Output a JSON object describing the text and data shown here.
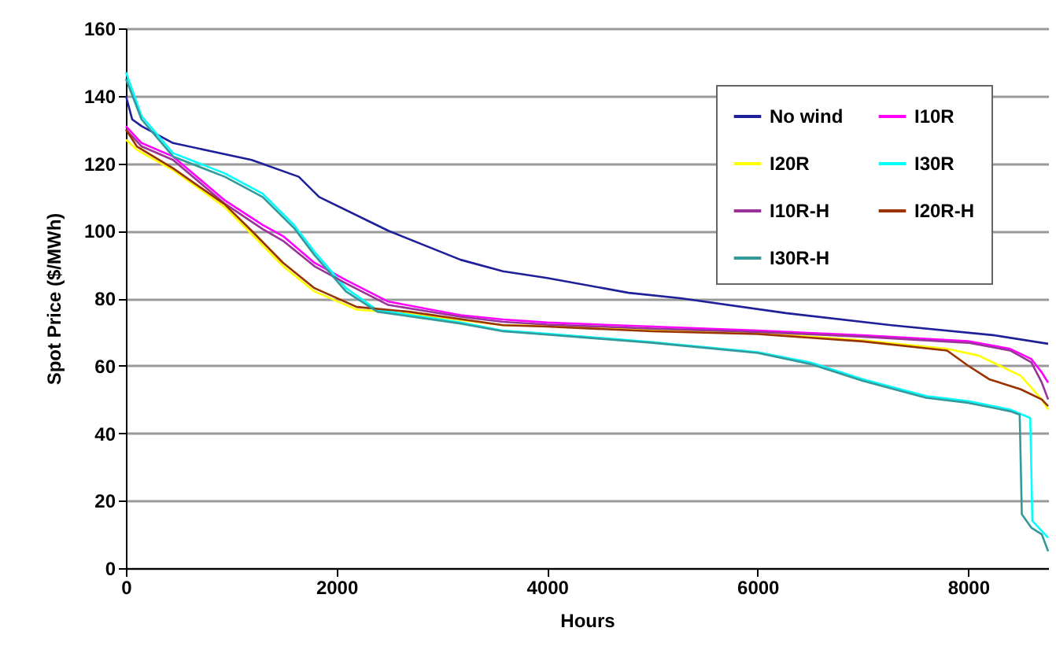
{
  "chart_data": {
    "type": "line",
    "xlabel": "Hours",
    "ylabel": "Spot Price ($/MWh)",
    "xlim": [
      0,
      8760
    ],
    "xticks": [
      0,
      2000,
      4000,
      6000,
      8000
    ],
    "ylim": [
      0,
      160
    ],
    "yticks": [
      0,
      20,
      40,
      60,
      80,
      100,
      120,
      140,
      160
    ],
    "grid": "y",
    "legend": "top right",
    "line_style": "solid",
    "marker": "none",
    "series": [
      {
        "name": "No wind",
        "color": "#1f1f9a",
        "x": [
          0,
          60,
          150,
          448,
          1194,
          1642,
          1836,
          2493,
          3179,
          3582,
          4000,
          4776,
          5269,
          6269,
          7269,
          8254,
          8760
        ],
        "values": [
          140,
          133,
          131,
          126,
          121,
          116,
          110,
          100,
          91.4,
          88,
          86,
          81.6,
          80,
          75.6,
          72,
          69,
          66.5
        ]
      },
      {
        "name": "I10R",
        "color": "#ff00ff",
        "x": [
          0,
          149,
          448,
          940,
          1299,
          1493,
          1791,
          2090,
          2493,
          3179,
          3582,
          4000,
          5000,
          6000,
          7000,
          8000,
          8400,
          8600,
          8700,
          8760
        ],
        "values": [
          131,
          126,
          122,
          109,
          101.7,
          98.4,
          90.5,
          85.4,
          79,
          75,
          73.7,
          72.8,
          71.6,
          70.4,
          69,
          67.3,
          65,
          62,
          58,
          55
        ]
      },
      {
        "name": "I20R",
        "color": "#ffff00",
        "x": [
          0,
          104,
          448,
          940,
          1194,
          1493,
          1791,
          2194,
          2687,
          3582,
          4000,
          5000,
          6000,
          7000,
          7800,
          8100,
          8300,
          8500,
          8700,
          8760
        ],
        "values": [
          127,
          124,
          118,
          107,
          99,
          89.5,
          82,
          76.6,
          75.4,
          72,
          71.8,
          70.5,
          69.7,
          67.5,
          65,
          63,
          60,
          57,
          50,
          47
        ]
      },
      {
        "name": "I30R",
        "color": "#00ffff",
        "x": [
          0,
          149,
          448,
          940,
          1299,
          1597,
          1791,
          2090,
          2388,
          3179,
          3582,
          4000,
          5000,
          6000,
          6500,
          7000,
          7600,
          8000,
          8400,
          8590,
          8610,
          8700,
          8760
        ],
        "values": [
          147,
          134,
          123,
          117,
          111,
          101.7,
          93.8,
          83,
          76.5,
          72.8,
          70.4,
          69.5,
          67,
          64,
          61,
          56,
          51,
          49.5,
          47,
          44.5,
          14,
          11,
          9
        ]
      },
      {
        "name": "I10R-H",
        "color": "#993399",
        "x": [
          0,
          149,
          448,
          940,
          1299,
          1493,
          1791,
          2090,
          2493,
          3179,
          3582,
          4000,
          5000,
          6000,
          7000,
          8000,
          8400,
          8600,
          8700,
          8760
        ],
        "values": [
          130,
          125,
          121,
          108,
          100.5,
          97,
          89.5,
          84.4,
          78,
          74.5,
          73,
          72.2,
          71,
          70,
          68.6,
          66.8,
          64.5,
          61,
          55,
          50
        ]
      },
      {
        "name": "I20R-H",
        "color": "#993300",
        "x": [
          0,
          104,
          448,
          940,
          1194,
          1493,
          1791,
          2194,
          2687,
          3582,
          4000,
          5000,
          6000,
          7000,
          7800,
          8000,
          8200,
          8500,
          8700,
          8760
        ],
        "values": [
          130,
          125,
          118.5,
          107.8,
          100,
          90.5,
          83,
          77.4,
          76,
          72,
          71.6,
          70.2,
          69.4,
          67.2,
          64.5,
          60,
          56,
          53,
          50,
          48
        ]
      },
      {
        "name": "I30R-H",
        "color": "#339999",
        "x": [
          0,
          149,
          448,
          940,
          1299,
          1597,
          1791,
          2090,
          2388,
          3179,
          3582,
          4000,
          5000,
          6000,
          6500,
          7000,
          7600,
          8000,
          8400,
          8490,
          8510,
          8600,
          8700,
          8760
        ],
        "values": [
          145,
          133,
          122,
          116,
          110,
          100.8,
          92.8,
          82,
          76,
          72.5,
          70.2,
          69.2,
          66.8,
          63.8,
          60.5,
          55.5,
          50.5,
          49,
          46.5,
          45.5,
          16,
          12,
          10,
          5
        ]
      }
    ]
  }
}
